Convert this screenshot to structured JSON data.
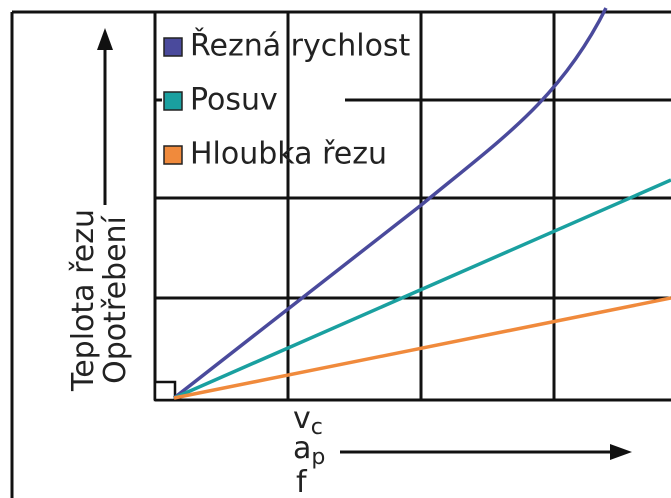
{
  "legend": [
    {
      "label": "Řezná rychlost",
      "color": "#4a4a9c"
    },
    {
      "label": "Posuv",
      "color": "#1aa0a0"
    },
    {
      "label": "Hloubka řezu",
      "color": "#f08a3c"
    }
  ],
  "y_axis_labels": [
    "Teplota řezu",
    "Opotřebení"
  ],
  "x_axis_labels": [
    {
      "symbol": "v",
      "subscript": "c"
    },
    {
      "symbol": "a",
      "subscript": "p"
    },
    {
      "symbol": "f"
    }
  ]
}
